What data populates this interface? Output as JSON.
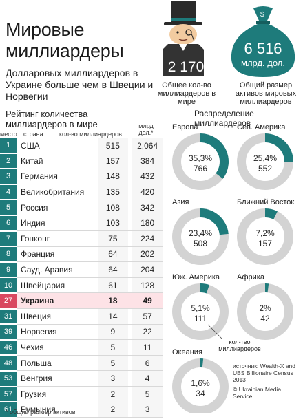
{
  "header": {
    "title": "Мировые миллиардеры",
    "subtitle": "Долларовых миллиардеров в Украине больше чем в Швеции и Норвегии"
  },
  "stats": {
    "count_value": "2 170",
    "count_caption": "Общее кол-во миллиардеров в мире",
    "assets_value": "6 516",
    "assets_unit": "млрд. дол.",
    "assets_caption": "Общий размер активов мировых миллиардеров"
  },
  "ranking": {
    "title": "Рейтинг количества миллиардеров в мире",
    "col_rank": "место",
    "col_country": "страна",
    "col_count": "кол-во миллиардеров",
    "col_wealth": "млрд дол.*",
    "footnote": "* общий размер активов"
  },
  "distribution": {
    "title": "Распределение миллиардеров",
    "legend_note": "кол-тво миллиардеров",
    "source": "источник: Wealth-X and UBS Billionaire Census 2013",
    "credit": "© Ukrainian Media Service"
  },
  "colors": {
    "teal": "#1e7b7b",
    "grey_ring": "#d3d3d3",
    "highlight_red": "#d94860",
    "highlight_bg": "#fde2e6",
    "dark": "#333333"
  },
  "chart_data": [
    {
      "type": "table",
      "columns": [
        "место",
        "страна",
        "кол-во миллиардеров",
        "млрд дол.*"
      ],
      "rows": [
        {
          "rank": "1",
          "country": "США",
          "count": "515",
          "wealth": "2,064"
        },
        {
          "rank": "2",
          "country": "Китай",
          "count": "157",
          "wealth": "384"
        },
        {
          "rank": "3",
          "country": "Германия",
          "count": "148",
          "wealth": "432"
        },
        {
          "rank": "4",
          "country": "Великобритания",
          "count": "135",
          "wealth": "420"
        },
        {
          "rank": "5",
          "country": "Россия",
          "count": "108",
          "wealth": "342"
        },
        {
          "rank": "6",
          "country": "Индия",
          "count": "103",
          "wealth": "180"
        },
        {
          "rank": "7",
          "country": "Гонконг",
          "count": "75",
          "wealth": "224"
        },
        {
          "rank": "8",
          "country": "Франция",
          "count": "64",
          "wealth": "202"
        },
        {
          "rank": "9",
          "country": "Сауд. Аравия",
          "count": "64",
          "wealth": "204"
        },
        {
          "rank": "10",
          "country": "Швейцария",
          "count": "61",
          "wealth": "128"
        },
        {
          "rank": "27",
          "country": "Украина",
          "count": "18",
          "wealth": "49",
          "highlight": true
        },
        {
          "rank": "31",
          "country": "Швеция",
          "count": "14",
          "wealth": "57"
        },
        {
          "rank": "39",
          "country": "Норвегия",
          "count": "9",
          "wealth": "22"
        },
        {
          "rank": "46",
          "country": "Чехия",
          "count": "5",
          "wealth": "11"
        },
        {
          "rank": "48",
          "country": "Польша",
          "count": "5",
          "wealth": "6"
        },
        {
          "rank": "53",
          "country": "Венгрия",
          "count": "3",
          "wealth": "4"
        },
        {
          "rank": "57",
          "country": "Грузия",
          "count": "2",
          "wealth": "5"
        },
        {
          "rank": "61",
          "country": "Румыния",
          "count": "2",
          "wealth": "3"
        }
      ]
    },
    {
      "type": "pie",
      "slices": [
        {
          "region": "Европа",
          "percent": 35.3,
          "percent_label": "35,3%",
          "count": "766"
        },
        {
          "region": "Сев. Америка",
          "percent": 25.4,
          "percent_label": "25,4%",
          "count": "552"
        },
        {
          "region": "Азия",
          "percent": 23.4,
          "percent_label": "23,4%",
          "count": "508"
        },
        {
          "region": "Ближний Восток",
          "percent": 7.2,
          "percent_label": "7,2%",
          "count": "157"
        },
        {
          "region": "Юж. Америка",
          "percent": 5.1,
          "percent_label": "5,1%",
          "count": "111"
        },
        {
          "region": "Африка",
          "percent": 2,
          "percent_label": "2%",
          "count": "42"
        },
        {
          "region": "Океания",
          "percent": 1.6,
          "percent_label": "1,6%",
          "count": "34"
        }
      ]
    }
  ]
}
